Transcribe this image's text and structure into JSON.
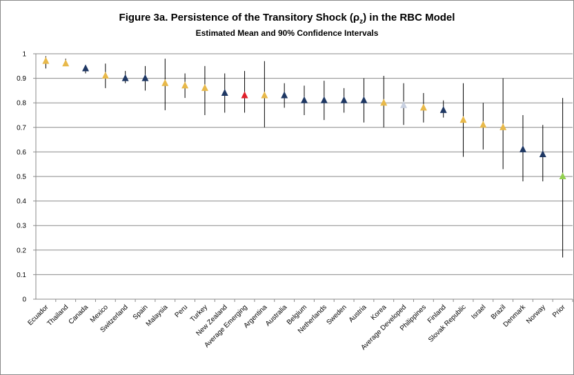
{
  "chart_data": {
    "type": "errorbar",
    "title": [
      "Figure 3a. Persistence of the Transitory Shock (ρ",
      "z",
      ") in the RBC Model"
    ],
    "subtitle": "Estimated Mean and 90% Confidence Intervals",
    "categories": [
      "Ecuador",
      "Thailand",
      "Canada",
      "Mexico",
      "Switzerland",
      "Spain",
      "Malaysia",
      "Peru",
      "Turkey",
      "New Zealand",
      "Average Emerging",
      "Argentina",
      "Australia",
      "Belgium",
      "Netherlands",
      "Sweden",
      "Austria",
      "Korea",
      "Average Developed",
      "Philippines",
      "Finland",
      "Slovak Republic",
      "Israel",
      "Brazil",
      "Denmark",
      "Norway",
      "Prior"
    ],
    "values": [
      0.97,
      0.96,
      0.94,
      0.91,
      0.9,
      0.9,
      0.88,
      0.87,
      0.86,
      0.84,
      0.83,
      0.83,
      0.83,
      0.81,
      0.81,
      0.81,
      0.81,
      0.8,
      0.79,
      0.78,
      0.77,
      0.73,
      0.71,
      0.7,
      0.61,
      0.59,
      0.5
    ],
    "lower": [
      0.94,
      0.95,
      0.92,
      0.86,
      0.88,
      0.85,
      0.77,
      0.82,
      0.75,
      0.76,
      0.76,
      0.7,
      0.78,
      0.75,
      0.73,
      0.76,
      0.72,
      0.7,
      0.71,
      0.72,
      0.74,
      0.58,
      0.61,
      0.53,
      0.48,
      0.48,
      0.17
    ],
    "upper": [
      0.99,
      0.98,
      0.95,
      0.96,
      0.93,
      0.95,
      0.98,
      0.92,
      0.95,
      0.92,
      0.93,
      0.97,
      0.88,
      0.87,
      0.89,
      0.86,
      0.9,
      0.91,
      0.88,
      0.84,
      0.81,
      0.88,
      0.8,
      0.9,
      0.75,
      0.71,
      0.82
    ],
    "colors": [
      "#e8b94a",
      "#e8b94a",
      "#1f3864",
      "#e8b94a",
      "#1f3864",
      "#1f3864",
      "#e8b94a",
      "#e8b94a",
      "#e8b94a",
      "#1f3864",
      "#e0202a",
      "#e8b94a",
      "#1f3864",
      "#1f3864",
      "#1f3864",
      "#1f3864",
      "#1f3864",
      "#e8b94a",
      "#c8d0e0",
      "#e8b94a",
      "#1f3864",
      "#e8b94a",
      "#e8b94a",
      "#e8b94a",
      "#1f3864",
      "#1f3864",
      "#92d050"
    ],
    "ylim": [
      0,
      1
    ],
    "yticks": [
      0,
      0.1,
      0.2,
      0.3,
      0.4,
      0.5,
      0.6,
      0.7,
      0.8,
      0.9,
      1
    ],
    "grid": true
  }
}
